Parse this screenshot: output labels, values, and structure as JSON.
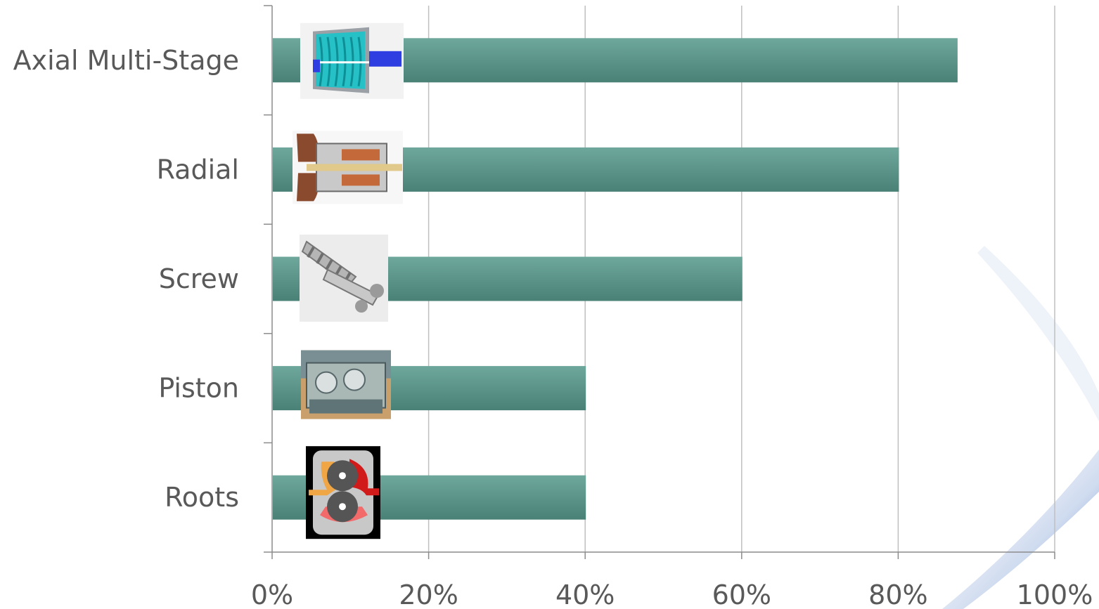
{
  "chart_data": {
    "type": "bar",
    "orientation": "horizontal",
    "categories": [
      "Axial Multi-Stage",
      "Radial",
      "Screw",
      "Piston",
      "Roots"
    ],
    "values": [
      0.875,
      0.8,
      0.6,
      0.4,
      0.4
    ],
    "xlim": [
      0,
      1
    ],
    "xticks": [
      0,
      0.2,
      0.4,
      0.6,
      0.8,
      1.0
    ],
    "xtick_labels": [
      "0%",
      "20%",
      "40%",
      "60%",
      "80%",
      "100%"
    ],
    "grid": true,
    "legend": "none",
    "colors": {
      "bar": "#4f8a80",
      "bar_light": "#6ea79c",
      "grid": "#bfbfbf",
      "axis": "#8c8c8c",
      "text": "#595959"
    },
    "images": [
      {
        "category": "Axial Multi-Stage",
        "depicts": "axial-compressor-icon"
      },
      {
        "category": "Radial",
        "depicts": "radial-compressor-icon"
      },
      {
        "category": "Screw",
        "depicts": "screw-rotor-icon"
      },
      {
        "category": "Piston",
        "depicts": "piston-compressor-icon"
      },
      {
        "category": "Roots",
        "depicts": "roots-blower-icon"
      }
    ]
  }
}
